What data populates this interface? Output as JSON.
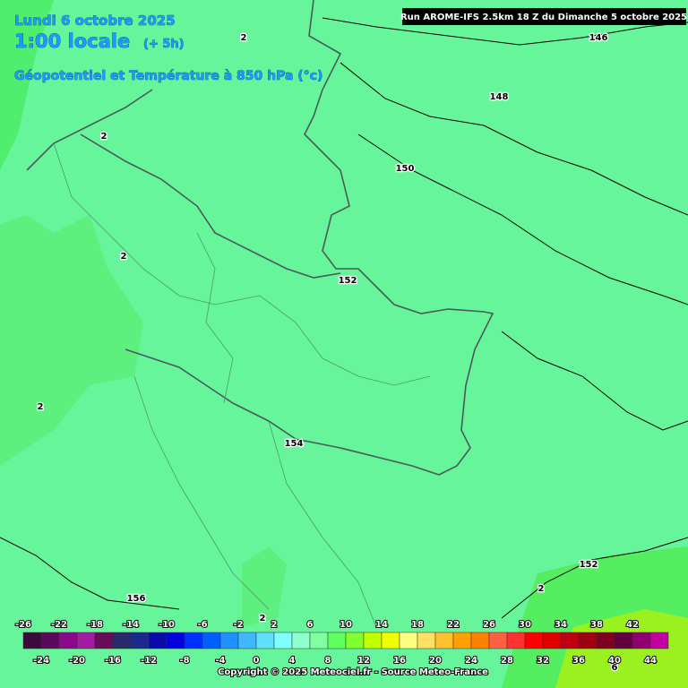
{
  "header": {
    "date": "Lundi 6 octobre 2025",
    "time": "1:00 locale",
    "offset": "(+ 5h)",
    "parameter": "Géopotentiel et Température à 850 hPa (°c)"
  },
  "run": "Run AROME-IFS 2.5km 18 Z du Dimanche 5 octobre 2025",
  "contour_labels": [
    146,
    148,
    150,
    152,
    154,
    156,
    152,
    2,
    2,
    2,
    2,
    2,
    2,
    6
  ],
  "colorbar": {
    "top_labels": [
      -26,
      -22,
      -18,
      -14,
      -10,
      -6,
      -2,
      2,
      6,
      10,
      14,
      18,
      22,
      26,
      30,
      34,
      38,
      42
    ],
    "bottom_labels": [
      -24,
      -20,
      -16,
      -12,
      -8,
      -4,
      0,
      4,
      8,
      12,
      16,
      20,
      24,
      28,
      32,
      36,
      40,
      44
    ],
    "colors": [
      "#3a0a3a",
      "#5a0a5a",
      "#8a0a8a",
      "#a01ca0",
      "#6a0a5a",
      "#2a2a6a",
      "#1a2a8a",
      "#0a0aaa",
      "#0000e0",
      "#0030ff",
      "#0060ff",
      "#2090ff",
      "#40b8ff",
      "#60e0ff",
      "#80ffff",
      "#90ffd0",
      "#80ffa0",
      "#60ff60",
      "#80ff30",
      "#c0ff00",
      "#f0ff00",
      "#ffff80",
      "#ffe060",
      "#ffc030",
      "#ffa000",
      "#ff8000",
      "#ff6040",
      "#ff3030",
      "#ff0000",
      "#e00000",
      "#c00010",
      "#a00010",
      "#800020",
      "#600040",
      "#900070",
      "#c000a0"
    ]
  },
  "copyright": "Copyright © 2025 Meteociel.fr - Source Meteo-France"
}
